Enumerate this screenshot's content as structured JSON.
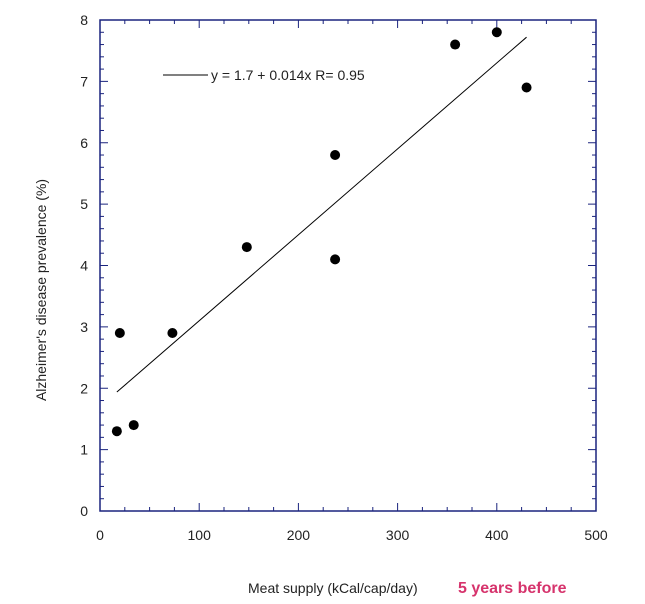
{
  "chart_data": {
    "type": "scatter",
    "title": "",
    "xlabel": "Meat supply (kCal/cap/day)",
    "ylabel": "Alzheimer's disease prevalence (%)",
    "xlim": [
      0,
      500
    ],
    "ylim": [
      0,
      8
    ],
    "x_ticks": [
      0,
      100,
      200,
      300,
      400,
      500
    ],
    "y_ticks": [
      0,
      1,
      2,
      3,
      4,
      5,
      6,
      7,
      8
    ],
    "grid": false,
    "legend_position": "top-left",
    "series": [
      {
        "x": [
          17,
          20,
          34,
          73,
          148,
          237,
          237,
          358,
          400,
          430
        ],
        "y": [
          1.3,
          2.9,
          1.4,
          2.9,
          4.3,
          5.8,
          4.1,
          7.6,
          7.8,
          6.9
        ],
        "color": "#000000"
      }
    ],
    "fit_line": {
      "label": "y = 1.7 + 0.014x   R= 0.95",
      "intercept": 1.7,
      "slope": 0.014,
      "x_range": [
        17,
        430
      ],
      "color": "#000000"
    },
    "annotation": {
      "text": "5 years before",
      "color": "#d6336c"
    }
  }
}
